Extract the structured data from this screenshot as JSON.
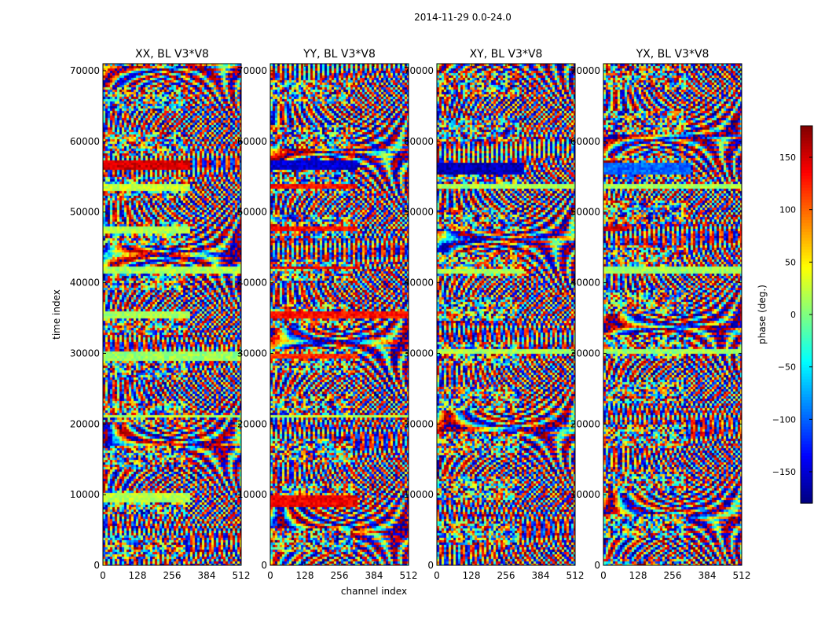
{
  "suptitle": "2014-11-29 0.0-24.0",
  "chart_data": {
    "type": "heatmap",
    "title": "2014-11-29 0.0-24.0",
    "xlabel": "channel index",
    "ylabel": "time index",
    "xlim": [
      0,
      512
    ],
    "ylim": [
      0,
      71000
    ],
    "xticks": [
      0,
      128,
      256,
      384,
      512
    ],
    "yticks": [
      0,
      10000,
      20000,
      30000,
      40000,
      50000,
      60000,
      70000
    ],
    "colormap": "jet",
    "colorbar": {
      "label": "phase (deg.)",
      "range": [
        -180,
        180
      ],
      "ticks": [
        150,
        100,
        50,
        0,
        -50,
        -100,
        -150
      ],
      "tick_labels": [
        "150",
        "100",
        "50",
        "0",
        "−50",
        "−100",
        "−150"
      ]
    },
    "panels": [
      {
        "title": "XX, BL V3*V8",
        "smooth_bands": [
          [
            9000,
            10500,
            0,
            320,
            20
          ],
          [
            29000,
            30500,
            0,
            512,
            10
          ],
          [
            35000,
            36000,
            0,
            320,
            15
          ],
          [
            41500,
            42500,
            0,
            512,
            15
          ],
          [
            47000,
            48000,
            0,
            320,
            20
          ],
          [
            53000,
            54000,
            0,
            320,
            25
          ],
          [
            56000,
            57500,
            0,
            320,
            150
          ],
          [
            21000,
            21500,
            0,
            512,
            20
          ]
        ]
      },
      {
        "title": "YY, BL V3*V8",
        "smooth_bands": [
          [
            8500,
            10000,
            0,
            320,
            140
          ],
          [
            29500,
            30200,
            0,
            320,
            120
          ],
          [
            35000,
            36000,
            0,
            512,
            130
          ],
          [
            42000,
            42600,
            0,
            320,
            140
          ],
          [
            47500,
            48000,
            0,
            320,
            130
          ],
          [
            53500,
            54000,
            0,
            320,
            130
          ],
          [
            56000,
            57500,
            0,
            320,
            -150
          ],
          [
            21000,
            21500,
            0,
            512,
            20
          ]
        ]
      },
      {
        "title": "XY, BL V3*V8",
        "smooth_bands": [
          [
            30000,
            30800,
            0,
            512,
            15
          ],
          [
            41500,
            42200,
            0,
            320,
            15
          ],
          [
            55500,
            57000,
            0,
            320,
            -160
          ],
          [
            53500,
            54000,
            0,
            512,
            15
          ]
        ]
      },
      {
        "title": "YX, BL V3*V8",
        "smooth_bands": [
          [
            30000,
            30800,
            0,
            512,
            10
          ],
          [
            41500,
            42500,
            0,
            512,
            10
          ],
          [
            55500,
            57000,
            0,
            320,
            -100
          ],
          [
            47500,
            48000,
            0,
            80,
            150
          ],
          [
            53500,
            54000,
            0,
            512,
            15
          ]
        ]
      }
    ]
  }
}
